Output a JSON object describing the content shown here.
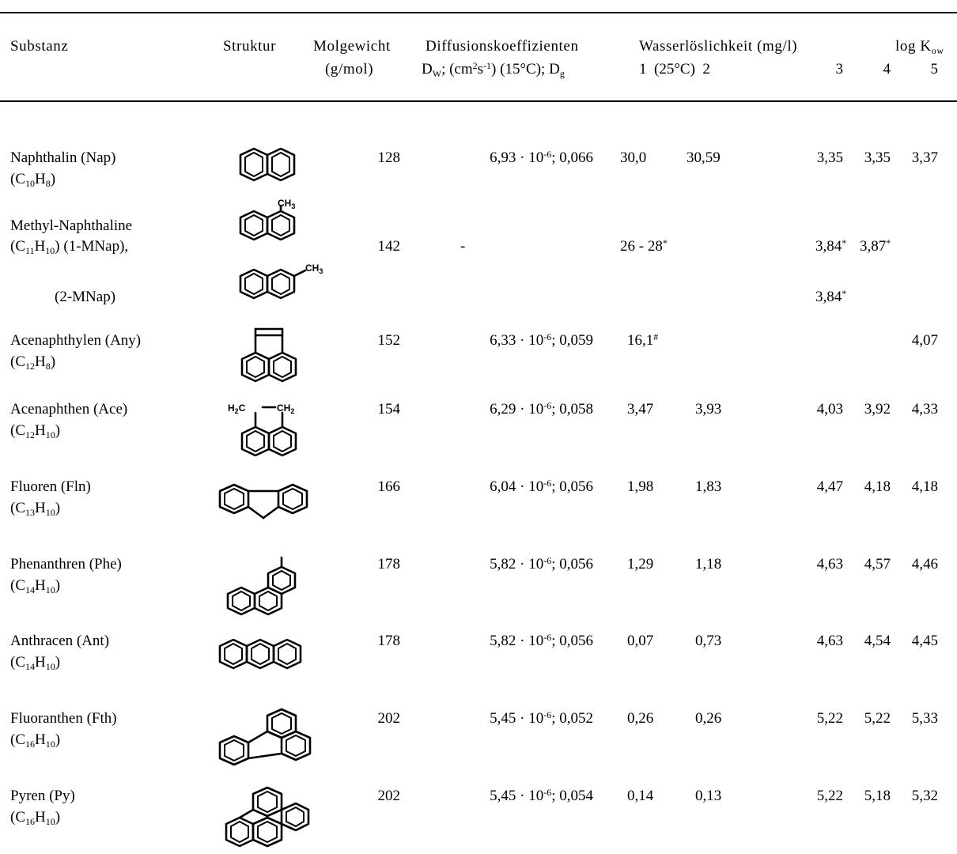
{
  "header": {
    "substanz": "Substanz",
    "struktur": "Struktur",
    "molgewicht": "Molgewicht",
    "molgewicht_unit": "(g/mol)",
    "diffusion": "Diffusionskoeffizienten",
    "diffusion_sub": {
      "d_w": "D",
      "d_w_sub": "W",
      "unit_a": "; (cm",
      "unit_sup1": "2",
      "unit_b": "s",
      "unit_sup2": "-1",
      "unit_c": ") (15°C); D",
      "d_g_sub": "g"
    },
    "wasser": "Wasserlöslichkeit (mg/l)",
    "wasser_sub": "1  (25°C)  2",
    "col3": "3",
    "logk": "log K",
    "logk_sub": "ow",
    "col4": "4",
    "col5": "5"
  },
  "rows": [
    {
      "name": "Naphthalin (Nap)",
      "f_a": "(C",
      "f_n1": "10",
      "f_b": "H",
      "f_n2": "8",
      "f_c": ")",
      "mw": "128",
      "dm": "6,93 · 10",
      "de": "-6",
      "dg": "; 0,066",
      "w1": "30,0",
      "w2": "30,59",
      "c3": "3,35",
      "c4": "3,35",
      "c5": "3,37"
    },
    {
      "name": "Methyl-Naphthaline",
      "f_a": "(C",
      "f_n1": "11",
      "f_b": "H",
      "f_n2": "10",
      "f_c": ") (1-MNap),",
      "mw": "142",
      "dash": "-",
      "w1": "26 - 28",
      "w1_sup": "*",
      "c3": "3,84",
      "c3_sup": "*",
      "c4": "3,87",
      "c4_sup": "*"
    },
    {
      "name": "(2-MNap)",
      "c3": "3,84",
      "c3_sup": "*"
    },
    {
      "name": "Acenaphthylen (Any)",
      "f_a": "(C",
      "f_n1": "12",
      "f_b": "H",
      "f_n2": "8",
      "f_c": ")",
      "mw": "152",
      "dm": "6,33 · 10",
      "de": "-6",
      "dg": "; 0,059",
      "w1": "16,1",
      "w1_sup": "#",
      "c5": "4,07"
    },
    {
      "name": "Acenaphthen (Ace)",
      "f_a": "(C",
      "f_n1": "12",
      "f_b": "H",
      "f_n2": "10",
      "f_c": ")",
      "mw": "154",
      "dm": "6,29 · 10",
      "de": "-6",
      "dg": "; 0,058",
      "w1": "3,47",
      "w2": "3,93",
      "c3": "4,03",
      "c4": "3,92",
      "c5": "4,33"
    },
    {
      "name": "Fluoren (Fln)",
      "f_a": "(C",
      "f_n1": "13",
      "f_b": "H",
      "f_n2": "10",
      "f_c": ")",
      "mw": "166",
      "dm": "6,04 · 10",
      "de": "-6",
      "dg": "; 0,056",
      "w1": "1,98",
      "w2": "1,83",
      "c3": "4,47",
      "c4": "4,18",
      "c5": "4,18"
    },
    {
      "name": "Phenanthren (Phe)",
      "f_a": "(C",
      "f_n1": "14",
      "f_b": "H",
      "f_n2": "10",
      "f_c": ")",
      "mw": "178",
      "dm": "5,82 · 10",
      "de": "-6",
      "dg": "; 0,056",
      "w1": "1,29",
      "w2": "1,18",
      "c3": "4,63",
      "c4": "4,57",
      "c5": "4,46"
    },
    {
      "name": "Anthracen (Ant)",
      "f_a": "(C",
      "f_n1": "14",
      "f_b": "H",
      "f_n2": "10",
      "f_c": ")",
      "mw": "178",
      "dm": "5,82 · 10",
      "de": "-6",
      "dg": "; 0,056",
      "w1": "0,07",
      "w2": "0,73",
      "c3": "4,63",
      "c4": "4,54",
      "c5": "4,45"
    },
    {
      "name": "Fluoranthen (Fth)",
      "f_a": "(C",
      "f_n1": "16",
      "f_b": "H",
      "f_n2": "10",
      "f_c": ")",
      "mw": "202",
      "dm": "5,45 · 10",
      "de": "-6",
      "dg": "; 0,052",
      "w1": "0,26",
      "w2": "0,26",
      "c3": "5,22",
      "c4": "5,22",
      "c5": "5,33"
    },
    {
      "name": "Pyren (Py)",
      "f_a": "(C",
      "f_n1": "16",
      "f_b": "H",
      "f_n2": "10",
      "f_c": ")",
      "mw": "202",
      "dm": "5,45 · 10",
      "de": "-6",
      "dg": "; 0,054",
      "w1": "0,14",
      "w2": "0,13",
      "c3": "5,22",
      "c4": "5,18",
      "c5": "5,32"
    }
  ],
  "structure_labels": {
    "ch3": "CH",
    "ch3_sub": "3",
    "h2c": "H",
    "h2c_sub": "2",
    "h2c_c": "C",
    "ch2_c": "CH",
    "ch2_sub": "2"
  },
  "structure_icons": [
    "naphthalene-icon",
    "1-methylnaphthalene-icon",
    "2-methylnaphthalene-icon",
    "acenaphthylene-icon",
    "acenaphthene-icon",
    "fluorene-icon",
    "phenanthrene-icon",
    "anthracene-icon",
    "fluoranthene-icon",
    "pyrene-icon"
  ]
}
